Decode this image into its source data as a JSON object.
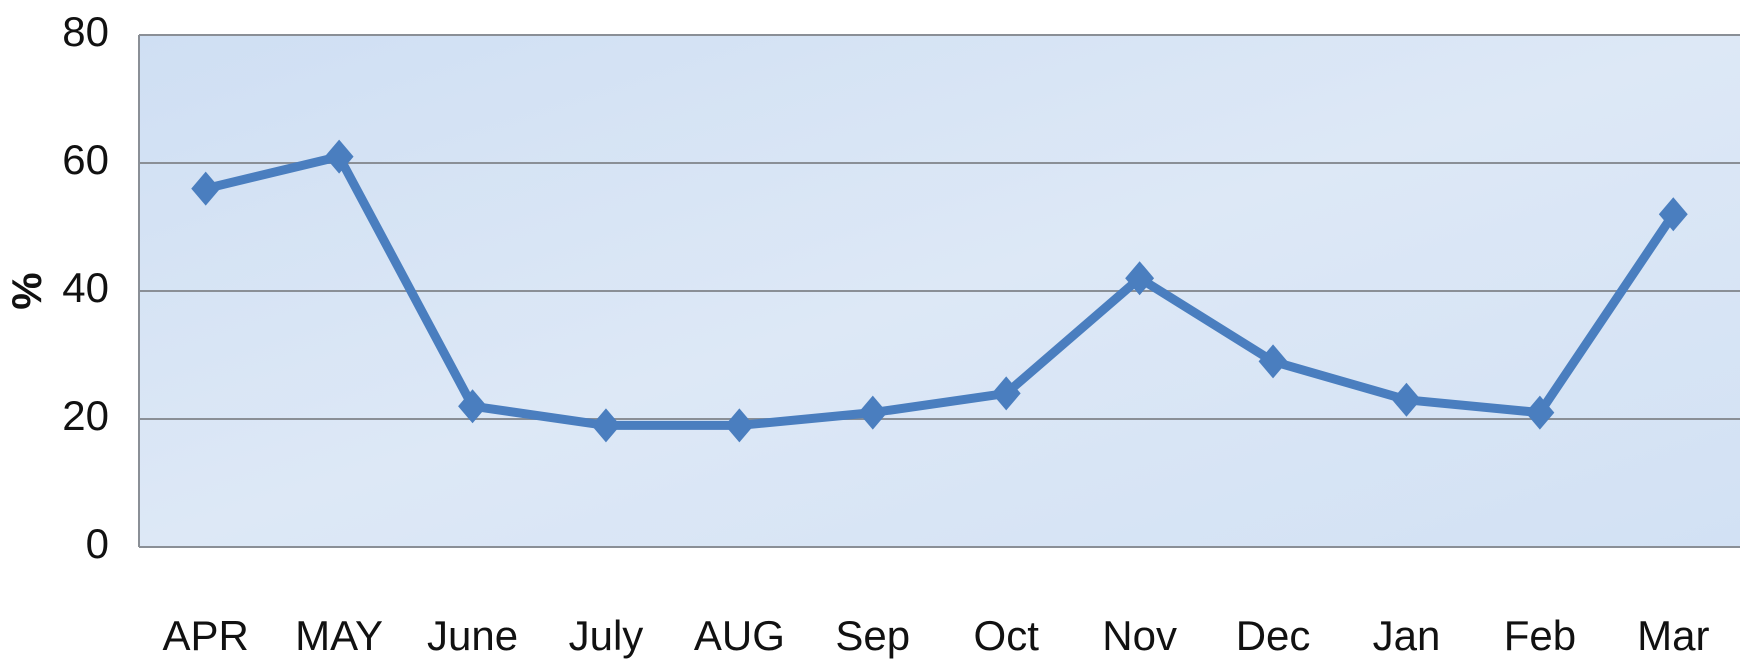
{
  "chart_data": {
    "type": "line",
    "y_label": "%",
    "categories": [
      "APR",
      "MAY",
      "June",
      "July",
      "AUG",
      "Sep",
      "Oct",
      "Nov",
      "Dec",
      "Jan",
      "Feb",
      "Mar"
    ],
    "values": [
      56,
      61,
      22,
      19,
      19,
      21,
      24,
      42,
      29,
      23,
      21,
      52
    ],
    "color": "#4a7ebf",
    "ylim": [
      0,
      80
    ],
    "yticks": [
      0,
      20,
      40,
      60,
      80
    ],
    "grid": true
  }
}
